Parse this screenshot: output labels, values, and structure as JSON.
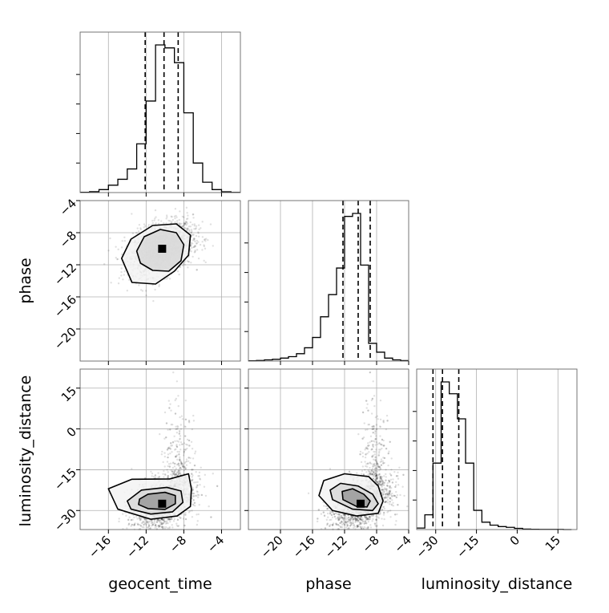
{
  "colors": {
    "hist": "#000000",
    "grid": "#b0b0b0",
    "points": "#000000",
    "density_dark": "#000000"
  },
  "chart_data": {
    "type": "corner",
    "parameters": [
      "geocent_time",
      "phase",
      "luminosity_distance"
    ],
    "ranges": {
      "geocent_time": [
        -19,
        -2
      ],
      "phase": [
        -24,
        -4
      ],
      "luminosity_distance": [
        -37,
        22
      ]
    },
    "ticks": {
      "geocent_time": {
        "values": [
          -16,
          -12,
          -8,
          -4
        ],
        "labels": [
          "−16",
          "−12",
          "−8",
          "−4"
        ]
      },
      "phase": {
        "values": [
          -20,
          -16,
          -12,
          -8,
          -4
        ],
        "labels": [
          "−20",
          "−16",
          "−12",
          "−8",
          "−4"
        ]
      },
      "luminosity_distance": {
        "values": [
          -30,
          -15,
          0,
          15
        ],
        "labels": [
          "−30",
          "−15",
          "0",
          "15"
        ]
      }
    },
    "grid": true,
    "histograms": [
      {
        "param": "geocent_time",
        "bin_edges": [
          -19,
          -18,
          -17,
          -16,
          -15,
          -14,
          -13,
          -12,
          -11,
          -10,
          -9,
          -8,
          -7,
          -6,
          -5,
          -4,
          -3,
          -2
        ],
        "counts": [
          0.002,
          0.006,
          0.02,
          0.05,
          0.09,
          0.16,
          0.33,
          0.62,
          1.0,
          0.98,
          0.88,
          0.54,
          0.2,
          0.07,
          0.02,
          0.005,
          0.001
        ],
        "quantiles": [
          -12.1,
          -10.1,
          -8.6
        ]
      },
      {
        "param": "phase",
        "bin_edges": [
          -24,
          -23,
          -22,
          -21,
          -20,
          -19,
          -18,
          -17,
          -16,
          -15,
          -14,
          -13,
          -12,
          -11,
          -10,
          -9,
          -8,
          -7,
          -6,
          -5,
          -4
        ],
        "counts": [
          0.002,
          0.004,
          0.008,
          0.012,
          0.02,
          0.03,
          0.05,
          0.09,
          0.16,
          0.3,
          0.45,
          0.63,
          0.98,
          1.0,
          0.65,
          0.12,
          0.06,
          0.02,
          0.008,
          0.003
        ],
        "quantiles": [
          -12.2,
          -10.3,
          -8.8
        ]
      },
      {
        "param": "luminosity_distance",
        "bin_edges": [
          -37,
          -34,
          -31,
          -28,
          -25,
          -22,
          -19,
          -16,
          -13,
          -10,
          -7,
          -4,
          -1,
          2,
          5,
          8,
          11,
          14,
          17,
          20
        ],
        "counts": [
          0.01,
          0.1,
          0.45,
          1.0,
          0.92,
          0.75,
          0.45,
          0.13,
          0.05,
          0.03,
          0.02,
          0.015,
          0.008,
          0.003,
          0.002,
          0.001,
          0.001,
          0.001,
          0.0
        ],
        "quantiles": [
          -31,
          -27.5,
          -21.5
        ]
      }
    ],
    "pairs": [
      {
        "x": "geocent_time",
        "y": "phase",
        "peak": [
          -10.3,
          -10.0
        ],
        "contours": [
          [
            [
              -13.0,
              -10.3
            ],
            [
              -12.2,
              -8.5
            ],
            [
              -10.5,
              -7.6
            ],
            [
              -8.8,
              -8.0
            ],
            [
              -8.0,
              -9.5
            ],
            [
              -8.3,
              -11.5
            ],
            [
              -9.6,
              -12.8
            ],
            [
              -11.3,
              -12.7
            ],
            [
              -12.6,
              -11.8
            ]
          ],
          [
            [
              -14.6,
              -11.2
            ],
            [
              -13.6,
              -8.8
            ],
            [
              -11.3,
              -7.1
            ],
            [
              -8.8,
              -6.9
            ],
            [
              -7.3,
              -8.3
            ],
            [
              -7.5,
              -10.8
            ],
            [
              -9.0,
              -12.8
            ],
            [
              -11.0,
              -14.4
            ],
            [
              -13.5,
              -14.2
            ]
          ]
        ]
      },
      {
        "x": "geocent_time",
        "y": "luminosity_distance",
        "peak": [
          -10.3,
          -27.5
        ],
        "contours": [
          [
            [
              -12.7,
              -25.8
            ],
            [
              -11.8,
              -24.0
            ],
            [
              -10.0,
              -23.3
            ],
            [
              -8.9,
              -24.5
            ],
            [
              -8.9,
              -27.5
            ],
            [
              -10.0,
              -29.6
            ],
            [
              -11.8,
              -29.3
            ],
            [
              -12.8,
              -27.8
            ]
          ],
          [
            [
              -14.0,
              -26.5
            ],
            [
              -12.5,
              -22.5
            ],
            [
              -9.8,
              -21.5
            ],
            [
              -8.3,
              -22.8
            ],
            [
              -8.1,
              -27.0
            ],
            [
              -9.2,
              -30.5
            ],
            [
              -11.5,
              -31.3
            ],
            [
              -13.6,
              -29.5
            ]
          ],
          [
            [
              -16.0,
              -22.0
            ],
            [
              -13.5,
              -18.5
            ],
            [
              -9.5,
              -18.4
            ],
            [
              -7.5,
              -16.5
            ],
            [
              -7.2,
              -22.0
            ],
            [
              -7.3,
              -28.5
            ],
            [
              -8.7,
              -32.0
            ],
            [
              -11.5,
              -33.2
            ],
            [
              -15.0,
              -29.5
            ]
          ]
        ]
      },
      {
        "x": "phase",
        "y": "luminosity_distance",
        "peak": [
          -10.0,
          -27.5
        ],
        "contours": [
          [
            [
              -12.3,
              -23.0
            ],
            [
              -11.0,
              -22.0
            ],
            [
              -9.6,
              -24.0
            ],
            [
              -8.8,
              -26.5
            ],
            [
              -9.2,
              -28.7
            ],
            [
              -10.5,
              -28.5
            ],
            [
              -12.2,
              -26.0
            ]
          ],
          [
            [
              -13.8,
              -22.5
            ],
            [
              -12.5,
              -20.0
            ],
            [
              -10.3,
              -21.0
            ],
            [
              -8.5,
              -24.0
            ],
            [
              -7.8,
              -27.5
            ],
            [
              -8.5,
              -30.0
            ],
            [
              -11.0,
              -29.5
            ],
            [
              -13.5,
              -26.0
            ]
          ],
          [
            [
              -14.6,
              -19.0
            ],
            [
              -12.0,
              -16.5
            ],
            [
              -9.0,
              -17.5
            ],
            [
              -7.8,
              -21.0
            ],
            [
              -7.2,
              -26.5
            ],
            [
              -7.8,
              -31.0
            ],
            [
              -10.5,
              -32.0
            ],
            [
              -13.5,
              -30.0
            ],
            [
              -15.2,
              -24.5
            ]
          ]
        ]
      }
    ]
  }
}
